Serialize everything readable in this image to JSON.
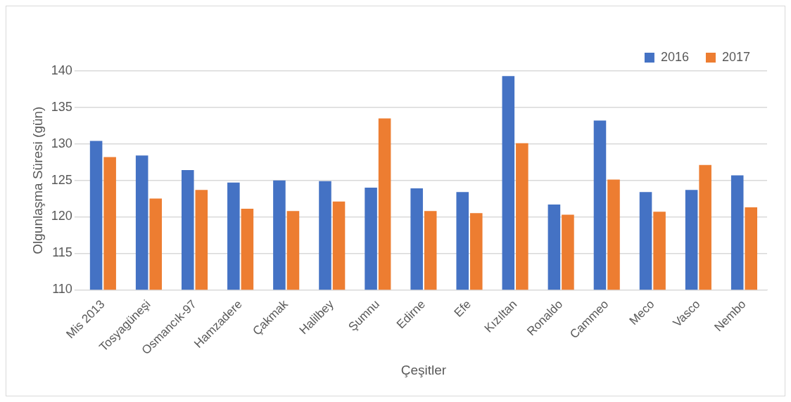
{
  "chart_data": {
    "type": "bar",
    "xlabel": "Çeşitler",
    "ylabel": "Olgunlaşma Süresi (gün)",
    "categories": [
      "Mis 2013",
      "Tosyagüneşi",
      "Osmancık-97",
      "Hamzadere",
      "Çakmak",
      "Halilbey",
      "Şumnu",
      "Edirne",
      "Efe",
      "Kızıltan",
      "Ronaldo",
      "Cammeo",
      "Meco",
      "Vasco",
      "Nembo"
    ],
    "series": [
      {
        "name": "2016",
        "color": "#4472c4",
        "values": [
          130.4,
          128.4,
          126.4,
          124.7,
          125.0,
          124.9,
          124.0,
          123.9,
          123.4,
          139.3,
          121.7,
          133.2,
          123.4,
          123.7,
          125.7
        ]
      },
      {
        "name": "2017",
        "color": "#ed7d31",
        "values": [
          128.2,
          122.5,
          123.7,
          121.1,
          120.8,
          122.1,
          133.5,
          120.8,
          120.5,
          130.1,
          120.3,
          125.1,
          120.7,
          127.1,
          121.3
        ]
      }
    ],
    "ylim": [
      110,
      140
    ],
    "yticks": [
      110,
      115,
      120,
      125,
      130,
      135,
      140
    ],
    "grid": "y",
    "legend": "top right"
  }
}
